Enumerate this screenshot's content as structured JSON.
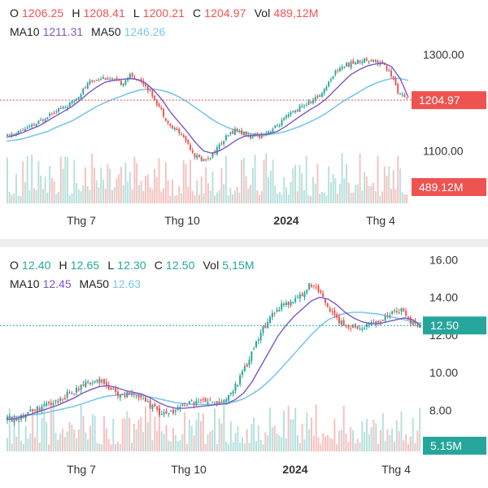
{
  "colors": {
    "up": "#26a69a",
    "down": "#ef5350",
    "ma10": "#7e57c2",
    "ma50": "#79c8e8",
    "grid": "#f0f0f0"
  },
  "charts": [
    {
      "ohlc": {
        "o_label": "O",
        "o": "1206.25",
        "h_label": "H",
        "h": "1208.41",
        "l_label": "L",
        "l": "1200.21",
        "c_label": "C",
        "c": "1204.97",
        "vol_label": "Vol",
        "vol": "489,12M"
      },
      "ma": {
        "ma10_label": "MA10",
        "ma10": "1211.31",
        "ma50_label": "MA50",
        "ma50": "1246.26"
      },
      "last_price_tag": "1204.97",
      "last_price_color": "#ef5350",
      "volume_tag": "489.12M",
      "volume_tag_color": "#ef5350",
      "y_ticks": [
        "1300.00",
        "1100.00"
      ],
      "x_ticks": [
        {
          "label": "Thg 7",
          "bold": false
        },
        {
          "label": "Thg 10",
          "bold": false
        },
        {
          "label": "2024",
          "bold": true
        },
        {
          "label": "Thg 4",
          "bold": false
        }
      ]
    },
    {
      "ohlc": {
        "o_label": "O",
        "o": "12.40",
        "h_label": "H",
        "h": "12.65",
        "l_label": "L",
        "l": "12.30",
        "c_label": "C",
        "c": "12.50",
        "vol_label": "Vol",
        "vol": "5,15M"
      },
      "ma": {
        "ma10_label": "MA10",
        "ma10": "12.45",
        "ma50_label": "MA50",
        "ma50": "12.63"
      },
      "last_price_tag": "12.50",
      "last_price_color": "#26a69a",
      "volume_tag": "5.15M",
      "volume_tag_color": "#26a69a",
      "y_ticks": [
        "16.00",
        "14.00",
        "12.00",
        "10.00",
        "8.00"
      ],
      "x_ticks": [
        {
          "label": "Thg 7",
          "bold": false
        },
        {
          "label": "Thg 10",
          "bold": false
        },
        {
          "label": "2024",
          "bold": true
        },
        {
          "label": "Thg 4",
          "bold": false
        }
      ]
    }
  ],
  "chart_data": [
    {
      "type": "candlestick",
      "ylim": [
        1050,
        1320
      ],
      "y_ticks": [
        1300,
        1100
      ],
      "last_price": 1204.97,
      "close_path": [
        1130,
        1135,
        1145,
        1150,
        1160,
        1175,
        1185,
        1190,
        1200,
        1220,
        1240,
        1250,
        1252,
        1245,
        1240,
        1255,
        1250,
        1235,
        1210,
        1180,
        1150,
        1140,
        1120,
        1090,
        1080,
        1090,
        1110,
        1130,
        1145,
        1135,
        1128,
        1132,
        1140,
        1150,
        1165,
        1180,
        1190,
        1200,
        1210,
        1230,
        1260,
        1275,
        1280,
        1285,
        1290,
        1288,
        1280,
        1260,
        1220,
        1205
      ],
      "ma10_path": [
        1128,
        1132,
        1138,
        1145,
        1152,
        1162,
        1172,
        1182,
        1192,
        1205,
        1220,
        1232,
        1242,
        1246,
        1248,
        1250,
        1248,
        1240,
        1225,
        1205,
        1180,
        1160,
        1140,
        1118,
        1100,
        1095,
        1100,
        1110,
        1122,
        1130,
        1132,
        1133,
        1135,
        1140,
        1150,
        1162,
        1174,
        1185,
        1195,
        1208,
        1225,
        1242,
        1258,
        1268,
        1276,
        1280,
        1282,
        1274,
        1250,
        1211
      ],
      "ma50_path": [
        1120,
        1122,
        1125,
        1130,
        1135,
        1140,
        1148,
        1155,
        1162,
        1172,
        1182,
        1192,
        1200,
        1207,
        1213,
        1220,
        1225,
        1228,
        1228,
        1225,
        1220,
        1212,
        1202,
        1190,
        1178,
        1166,
        1156,
        1148,
        1142,
        1138,
        1135,
        1134,
        1134,
        1136,
        1140,
        1146,
        1152,
        1160,
        1168,
        1178,
        1190,
        1202,
        1212,
        1222,
        1232,
        1240,
        1246,
        1250,
        1250,
        1246
      ],
      "volume_last": "489.12M"
    },
    {
      "type": "candlestick",
      "ylim": [
        6.8,
        16.4
      ],
      "y_ticks": [
        16,
        14,
        12,
        10,
        8
      ],
      "last_price": 12.5,
      "close_path": [
        7.5,
        7.6,
        7.8,
        8.0,
        8.2,
        8.3,
        8.5,
        8.8,
        9.0,
        9.3,
        9.5,
        9.6,
        9.2,
        8.9,
        8.8,
        9.0,
        8.6,
        8.2,
        7.9,
        7.8,
        8.0,
        8.3,
        8.4,
        8.5,
        8.4,
        8.3,
        8.6,
        9.2,
        10.0,
        11.0,
        12.0,
        12.8,
        13.4,
        13.6,
        13.8,
        14.2,
        14.7,
        14.3,
        13.6,
        12.9,
        12.6,
        12.5,
        12.4,
        12.6,
        12.7,
        12.9,
        13.2,
        13.4,
        12.6,
        12.5
      ],
      "ma10_path": [
        7.5,
        7.55,
        7.65,
        7.8,
        7.95,
        8.1,
        8.25,
        8.45,
        8.65,
        8.9,
        9.1,
        9.25,
        9.3,
        9.2,
        9.05,
        8.95,
        8.85,
        8.65,
        8.4,
        8.2,
        8.1,
        8.1,
        8.15,
        8.2,
        8.25,
        8.3,
        8.35,
        8.55,
        8.9,
        9.5,
        10.3,
        11.1,
        11.9,
        12.5,
        13.0,
        13.4,
        13.8,
        14.0,
        13.9,
        13.6,
        13.2,
        12.9,
        12.7,
        12.6,
        12.6,
        12.7,
        12.8,
        12.9,
        12.8,
        12.45
      ],
      "ma50_path": [
        7.6,
        7.65,
        7.7,
        7.75,
        7.8,
        7.9,
        8.0,
        8.1,
        8.2,
        8.35,
        8.5,
        8.65,
        8.75,
        8.8,
        8.85,
        8.85,
        8.8,
        8.7,
        8.6,
        8.5,
        8.4,
        8.35,
        8.3,
        8.3,
        8.3,
        8.3,
        8.35,
        8.45,
        8.6,
        8.85,
        9.15,
        9.55,
        10.0,
        10.5,
        11.0,
        11.5,
        12.0,
        12.45,
        12.8,
        13.0,
        13.15,
        13.2,
        13.2,
        13.15,
        13.1,
        13.0,
        12.9,
        12.8,
        12.7,
        12.63
      ],
      "volume_last": "5.15M"
    }
  ]
}
